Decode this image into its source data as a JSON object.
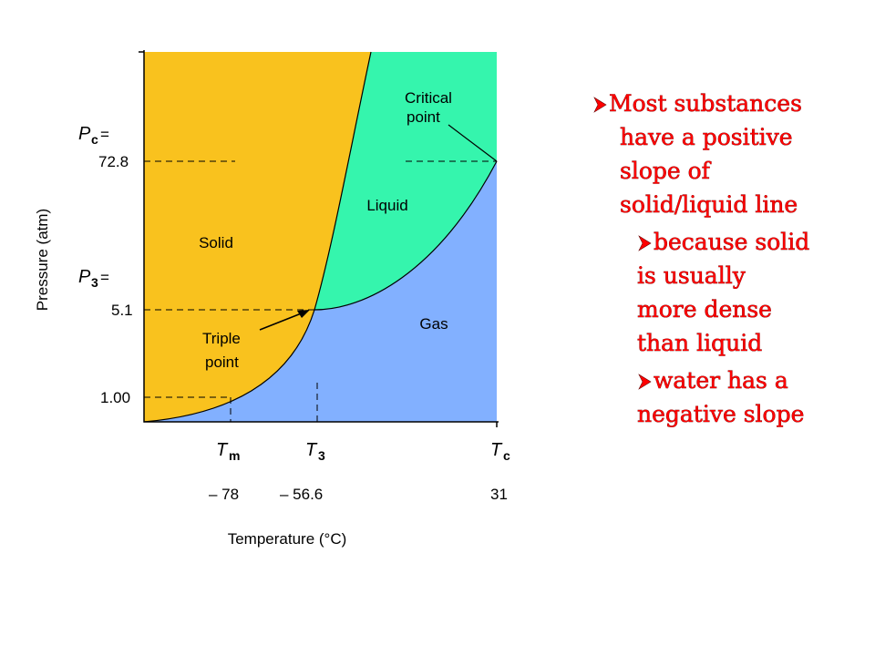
{
  "diagram": {
    "y_axis_label": "Pressure (atm)",
    "x_axis_label": "Temperature (°C)",
    "y_markers": [
      {
        "symbol": "P",
        "subscript": "c",
        "equals": "=",
        "value": "72.8"
      },
      {
        "symbol": "P",
        "subscript": "3",
        "equals": "=",
        "value": "5.1"
      },
      {
        "value": "1.00"
      }
    ],
    "x_markers": [
      {
        "symbol": "T",
        "subscript": "m",
        "value": "– 78"
      },
      {
        "symbol": "T",
        "subscript": "3",
        "value": "– 56.6"
      },
      {
        "symbol": "T",
        "subscript": "c",
        "value": "31"
      }
    ],
    "regions": [
      "Solid",
      "Liquid",
      "Gas"
    ],
    "annotations": {
      "triple_point": [
        "Triple",
        "point"
      ],
      "critical_point": [
        "Critical",
        "point"
      ]
    }
  },
  "bullets": [
    {
      "level": 1,
      "lines": [
        "Most substances",
        "have a positive",
        "slope of",
        "solid/liquid line"
      ]
    },
    {
      "level": 2,
      "lines": [
        "because solid",
        "is usually",
        "more dense",
        "than liquid"
      ]
    },
    {
      "level": 2,
      "lines": [
        "water has a",
        "negative slope"
      ]
    }
  ]
}
